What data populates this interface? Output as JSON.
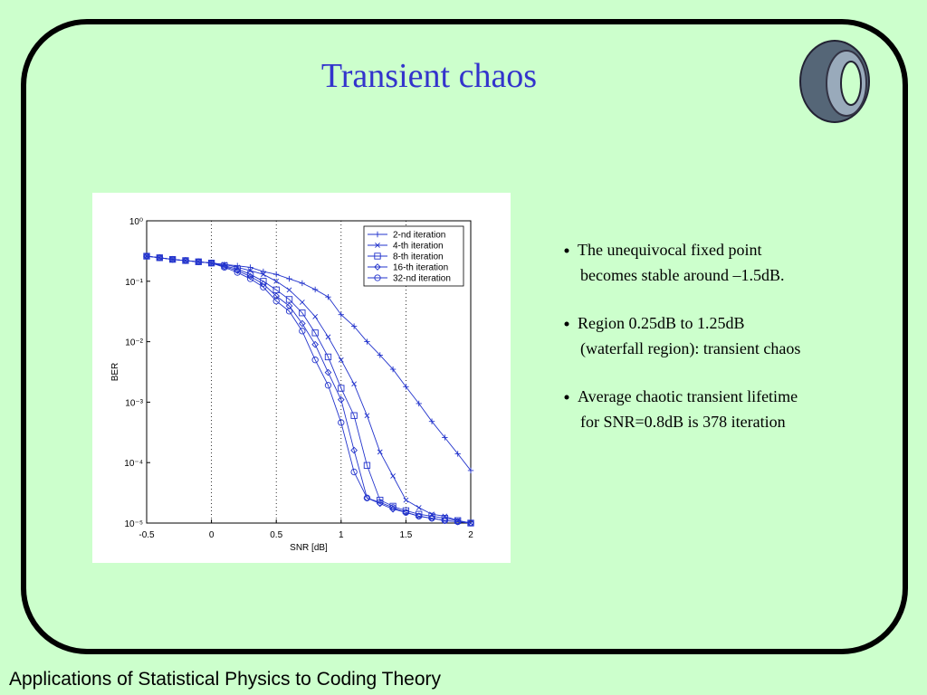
{
  "slide_title": "Transient chaos",
  "bullets": [
    [
      "The unequivocal fixed point",
      "becomes stable around –1.5dB."
    ],
    [
      "Region 0.25dB to 1.25dB",
      "(waterfall region): transient chaos"
    ],
    [
      "Average chaotic transient lifetime",
      "for SNR=0.8dB is 378 iteration"
    ]
  ],
  "footer": "Applications of Statistical Physics to Coding Theory",
  "chart_data": {
    "type": "line",
    "x_label": "SNR [dB]",
    "y_label": "BER",
    "log_y": true,
    "x_grid": true,
    "legend": "upper right",
    "xlim": [
      -0.5,
      2
    ],
    "xticks": [
      -0.5,
      0,
      0.5,
      1,
      1.5,
      2
    ],
    "ylim": [
      1e-05,
      1
    ],
    "yticks": [
      {
        "value": 1,
        "label": "10⁰"
      },
      {
        "value": 0.1,
        "label": "10⁻¹"
      },
      {
        "value": 0.01,
        "label": "10⁻²"
      },
      {
        "value": 0.001,
        "label": "10⁻³"
      },
      {
        "value": 0.0001,
        "label": "10⁻⁴"
      },
      {
        "value": 1e-05,
        "label": "10⁻⁵"
      }
    ],
    "x": [
      -0.5,
      -0.4,
      -0.3,
      -0.2,
      -0.1,
      0,
      0.1,
      0.2,
      0.3,
      0.4,
      0.5,
      0.6,
      0.7,
      0.8,
      0.9,
      1,
      1.1,
      1.2,
      1.3,
      1.4,
      1.5,
      1.6,
      1.7,
      1.8,
      1.9,
      2
    ],
    "series": [
      {
        "name": "2-nd iteration",
        "color": "#2233cc",
        "marker": "plus",
        "values": [
          0.26,
          0.245,
          0.23,
          0.22,
          0.21,
          0.2,
          0.19,
          0.18,
          0.17,
          0.145,
          0.13,
          0.11,
          0.093,
          0.073,
          0.055,
          0.028,
          0.018,
          0.01,
          0.006,
          0.0035,
          0.0018,
          0.00095,
          0.00048,
          0.00026,
          0.00014,
          7.4e-05
        ]
      },
      {
        "name": "4-th iteration",
        "color": "#2233cc",
        "marker": "cross",
        "values": [
          0.26,
          0.245,
          0.23,
          0.22,
          0.21,
          0.2,
          0.19,
          0.17,
          0.15,
          0.13,
          0.1,
          0.072,
          0.045,
          0.026,
          0.012,
          0.005,
          0.002,
          0.0006,
          0.00015,
          6e-05,
          2.4e-05,
          1.8e-05,
          1.4e-05,
          1.3e-05,
          1.1e-05,
          1e-05
        ]
      },
      {
        "name": "8-th iteration",
        "color": "#2233cc",
        "marker": "square",
        "values": [
          0.26,
          0.245,
          0.23,
          0.22,
          0.21,
          0.2,
          0.18,
          0.16,
          0.13,
          0.1,
          0.072,
          0.05,
          0.03,
          0.014,
          0.0056,
          0.0017,
          0.0006,
          9e-05,
          2.4e-05,
          1.9e-05,
          1.6e-05,
          1.4e-05,
          1.3e-05,
          1.2e-05,
          1.1e-05,
          1e-05
        ]
      },
      {
        "name": "16-th iteration",
        "color": "#2233cc",
        "marker": "diamond",
        "values": [
          0.26,
          0.245,
          0.23,
          0.22,
          0.21,
          0.2,
          0.175,
          0.15,
          0.12,
          0.09,
          0.057,
          0.039,
          0.02,
          0.009,
          0.0031,
          0.0011,
          0.00016,
          2.6e-05,
          2.1e-05,
          1.7e-05,
          1.5e-05,
          1.3e-05,
          1.2e-05,
          1.1e-05,
          1.05e-05,
          1e-05
        ]
      },
      {
        "name": "32-nd iteration",
        "color": "#2233cc",
        "marker": "circle",
        "values": [
          0.26,
          0.245,
          0.23,
          0.22,
          0.21,
          0.2,
          0.17,
          0.14,
          0.11,
          0.08,
          0.047,
          0.032,
          0.015,
          0.005,
          0.0019,
          0.00046,
          7e-05,
          2.6e-05,
          2.2e-05,
          1.8e-05,
          1.5e-05,
          1.3e-05,
          1.2e-05,
          1.1e-05,
          1.05e-05,
          1e-05
        ]
      }
    ]
  }
}
